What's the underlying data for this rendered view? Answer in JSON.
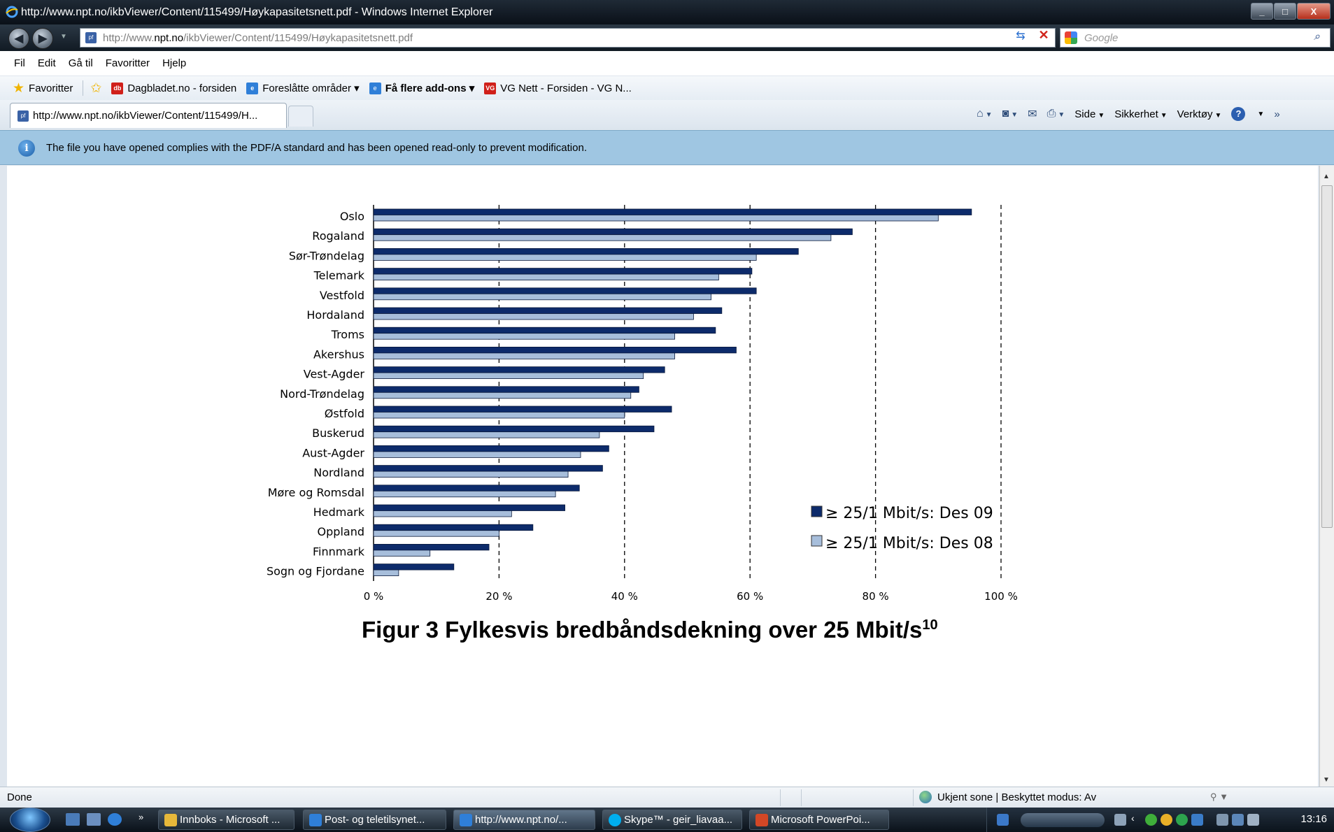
{
  "window": {
    "title": "http://www.npt.no/ikbViewer/Content/115499/Høykapasitetsnett.pdf - Windows Internet Explorer",
    "controls": [
      "_",
      "□",
      "X"
    ]
  },
  "address_bar": {
    "url_prefix": "http://www.",
    "url_domain": "npt.no",
    "url_suffix": "/ikbViewer/Content/115499/Høykapasitetsnett.pdf",
    "search_placeholder": "Google"
  },
  "menu": [
    "Fil",
    "Edit",
    "Gå til",
    "Favoritter",
    "Hjelp"
  ],
  "favorites_bar": {
    "favorites_label": "Favoritter",
    "items": [
      {
        "label": "Dagbladet.no - forsiden",
        "icon": "db"
      },
      {
        "label": "Foreslåtte områder ▾",
        "icon": "ie"
      },
      {
        "label": "Få flere add-ons ▾",
        "icon": "ie"
      },
      {
        "label": "VG Nett - Forsiden - VG N...",
        "icon": "vg"
      }
    ]
  },
  "tab": {
    "label": "http://www.npt.no/ikbViewer/Content/115499/H...",
    "commands": [
      "Side",
      "Sikkerhet",
      "Verktøy"
    ]
  },
  "infobar": {
    "message": "The file you have opened complies with the PDF/A standard and has been opened read-only to prevent modification."
  },
  "chart_data": {
    "type": "bar",
    "orientation": "horizontal",
    "categories": [
      "Oslo",
      "Rogaland",
      "Sør-Trøndelag",
      "Telemark",
      "Vestfold",
      "Hordaland",
      "Troms",
      "Akershus",
      "Vest-Agder",
      "Nord-Trøndelag",
      "Østfold",
      "Buskerud",
      "Aust-Agder",
      "Nordland",
      "Møre og Romsdal",
      "Hedmark",
      "Oppland",
      "Finnmark",
      "Sogn og Fjordane"
    ],
    "series": [
      {
        "name": "≥ 25/1 Mbit/s: Des 09",
        "color": "#0d2b6b",
        "values": [
          95.3,
          76.3,
          67.7,
          60.3,
          61.0,
          55.5,
          54.5,
          57.8,
          46.4,
          42.3,
          47.5,
          44.7,
          37.5,
          36.5,
          32.8,
          30.5,
          25.4,
          18.4,
          12.8
        ]
      },
      {
        "name": "≥ 25/1 Mbit/s: Des 08",
        "color": "#a7bedb",
        "values": [
          90.0,
          72.9,
          61.0,
          55.0,
          53.8,
          51.0,
          48.0,
          48.0,
          43.0,
          41.0,
          40.0,
          36.0,
          33.0,
          31.0,
          29.0,
          22.0,
          20.0,
          9.0,
          4.0
        ]
      }
    ],
    "x_ticks": [
      "0 %",
      "20 %",
      "40 %",
      "60 %",
      "80 %",
      "100 %"
    ],
    "xlim": [
      0,
      100
    ],
    "grid": "vertical dashed",
    "legend_position": "bottom-right",
    "title": "Figur 3 Fylkesvis bredbåndsdekning over 25 Mbit/s",
    "title_superscript": "10"
  },
  "statusbar": {
    "status": "Done",
    "zone": "Ukjent sone | Beskyttet modus: Av"
  },
  "taskbar": {
    "buttons": [
      "Innboks - Microsoft ...",
      "Post- og teletilsynet...",
      "http://www.npt.no/...",
      "Skype™ - geir_liavaa...",
      "Microsoft PowerPoi..."
    ],
    "clock": "13:16"
  }
}
